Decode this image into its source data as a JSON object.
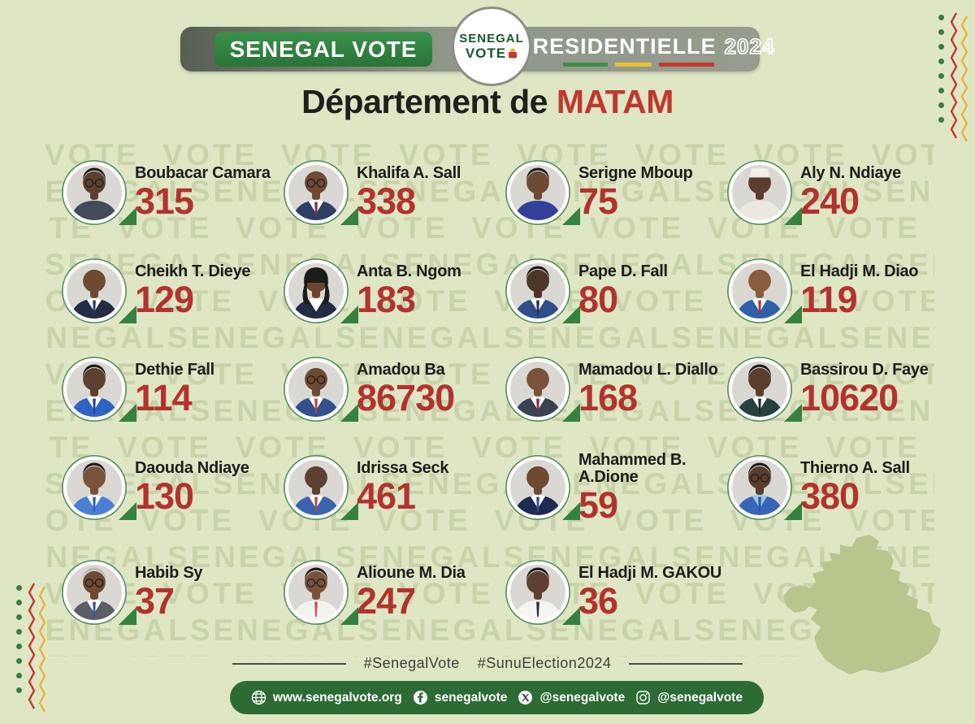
{
  "header": {
    "badge_label": "SENEGAL VOTE",
    "logo_line1": "SENEGAL",
    "logo_line2": "VOTE",
    "banner_title": "PRESIDENTIELLE",
    "banner_year": "2024"
  },
  "title": {
    "prefix": "Département de ",
    "highlight": "MATAM"
  },
  "results": [
    {
      "name": "Boubacar Camara",
      "votes": "315",
      "avatar": {
        "skin": "#5d4030",
        "suit": "#434a58",
        "shirt": null,
        "tie": null,
        "hair": "short",
        "glasses": true,
        "hat": null
      }
    },
    {
      "name": "Khalifa A. Sall",
      "votes": "338",
      "avatar": {
        "skin": "#6e4a33",
        "suit": "#2e3f66",
        "shirt": "#ffffff",
        "tie": "#7a3545",
        "hair": "bald",
        "glasses": true,
        "hat": null
      }
    },
    {
      "name": "Serigne Mboup",
      "votes": "75",
      "avatar": {
        "skin": "#6e4a33",
        "suit": "#32409b",
        "shirt": null,
        "tie": null,
        "hair": "short",
        "glasses": false,
        "hat": null
      }
    },
    {
      "name": "Aly N. Ndiaye",
      "votes": "240",
      "avatar": {
        "skin": "#5a3d2c",
        "suit": "#eceadf",
        "shirt": null,
        "tie": null,
        "hair": "bald",
        "glasses": false,
        "hat": "#f2f0e6"
      }
    },
    {
      "name": "Cheikh T. Dieye",
      "votes": "129",
      "avatar": {
        "skin": "#6e4a33",
        "suit": "#232e45",
        "shirt": "#ffffff",
        "tie": "#2c3c5e",
        "hair": "bald",
        "glasses": false,
        "hat": null
      }
    },
    {
      "name": "Anta B. Ngom",
      "votes": "183",
      "avatar": {
        "skin": "#6d452f",
        "suit": "#222c42",
        "shirt": "#ffffff",
        "tie": null,
        "hair": "long",
        "glasses": false,
        "hat": null
      }
    },
    {
      "name": "Pape D. Fall",
      "votes": "80",
      "avatar": {
        "skin": "#4f3526",
        "suit": "#2f4f8c",
        "shirt": "#ffffff",
        "tie": "#26304d",
        "hair": "short",
        "glasses": false,
        "hat": null
      }
    },
    {
      "name": "El Hadji M. Diao",
      "votes": "119",
      "avatar": {
        "skin": "#8a5c3e",
        "suit": "#2f5fa8",
        "shirt": "#ffffff",
        "tie": "#b03040",
        "hair": "bald",
        "glasses": false,
        "hat": null
      }
    },
    {
      "name": "Dethie Fall",
      "votes": "114",
      "avatar": {
        "skin": "#5d4030",
        "suit": "#2f62c4",
        "shirt": "#ffffff",
        "tie": "#2a3f8f",
        "hair": "short",
        "glasses": false,
        "hat": null
      }
    },
    {
      "name": "Amadou Ba",
      "votes": "86730",
      "avatar": {
        "skin": "#6e4a33",
        "suit": "#33508f",
        "shirt": "#ffffff",
        "tie": "#b5453e",
        "hair": "bald",
        "glasses": true,
        "hat": null
      }
    },
    {
      "name": "Mamadou L. Diallo",
      "votes": "168",
      "avatar": {
        "skin": "#7a523a",
        "suit": "#3a4352",
        "shirt": "#ffffff",
        "tie": "#7e2f42",
        "hair": "bald",
        "glasses": false,
        "hat": null
      }
    },
    {
      "name": "Bassirou D. Faye",
      "votes": "10620",
      "avatar": {
        "skin": "#5a3d2c",
        "suit": "#27413f",
        "shirt": "#ffffff",
        "tie": "#1d2b33",
        "hair": "short",
        "glasses": false,
        "hat": null
      }
    },
    {
      "name": "Daouda Ndiaye",
      "votes": "130",
      "avatar": {
        "skin": "#7a523a",
        "suit": "#4b7fd6",
        "shirt": "#ffffff",
        "tie": "#2f5fae",
        "hair": "short",
        "glasses": false,
        "hat": null
      }
    },
    {
      "name": "Idrissa Seck",
      "votes": "461",
      "avatar": {
        "skin": "#5d4030",
        "suit": "#3b63b0",
        "shirt": "#ffffff",
        "tie": "#c2463c",
        "hair": "bald",
        "glasses": false,
        "hat": null
      }
    },
    {
      "name": "Mahammed B. A.Dione",
      "votes": "59",
      "avatar": {
        "skin": "#6e4a33",
        "suit": "#1f2c52",
        "shirt": "#ffffff",
        "tie": "#2f4f9e",
        "hair": "bald",
        "glasses": false,
        "hat": null
      }
    },
    {
      "name": "Thierno A. Sall",
      "votes": "380",
      "avatar": {
        "skin": "#5a3d2c",
        "suit": "#3566b8",
        "shirt": "#9ec4e8",
        "tie": "#2b57a0",
        "hair": "short",
        "glasses": true,
        "hat": null
      }
    },
    {
      "name": "Habib Sy",
      "votes": "37",
      "avatar": {
        "skin": "#6e4a33",
        "suit": "#5a5f66",
        "shirt": "#ffffff",
        "tie": "#3a5a8e",
        "hair": "gray",
        "glasses": true,
        "hat": null
      }
    },
    {
      "name": "Alioune M. Dia",
      "votes": "247",
      "avatar": {
        "skin": "#7a523a",
        "suit": "#f2f2ee",
        "shirt": null,
        "tie": "#c05560",
        "hair": "short",
        "glasses": true,
        "hat": null
      }
    },
    {
      "name": "El Hadji M. GAKOU",
      "votes": "36",
      "avatar": {
        "skin": "#5d4030",
        "suit": "#f5f5f1",
        "shirt": null,
        "tie": "#2a3440",
        "hair": "short",
        "glasses": false,
        "hat": null
      }
    }
  ],
  "hashtags": [
    "#SenegalVote",
    "#SunuElection2024"
  ],
  "footer": {
    "items": [
      {
        "icon": "globe-icon",
        "label": "www.senegalvote.org"
      },
      {
        "icon": "facebook-icon",
        "label": "senegalvote"
      },
      {
        "icon": "x-icon",
        "label": "@senegalvote"
      },
      {
        "icon": "instagram-icon",
        "label": "@senegalvote"
      }
    ]
  },
  "watermark": {
    "word1": "VOTE",
    "word2": "SENEGAL"
  },
  "colors": {
    "background": "#dee6c4",
    "accent_red": "#b2332e",
    "title_red": "#c03730",
    "badge_green": "#2e7d3c",
    "footer_green": "#2d6b35",
    "banner_gray": "#8f968a",
    "map_green": "#b8c58c",
    "flag_green": "#3f8f43",
    "flag_yellow": "#e9c42f",
    "flag_red": "#c4392c"
  },
  "chart_data": {
    "type": "table",
    "title": "Département de MATAM — Presidentielle 2024",
    "value_label": "votes",
    "categories": [
      "Boubacar Camara",
      "Khalifa A. Sall",
      "Serigne Mboup",
      "Aly N. Ndiaye",
      "Cheikh T. Dieye",
      "Anta B. Ngom",
      "Pape D. Fall",
      "El Hadji M. Diao",
      "Dethie Fall",
      "Amadou Ba",
      "Mamadou L. Diallo",
      "Bassirou D. Faye",
      "Daouda Ndiaye",
      "Idrissa Seck",
      "Mahammed B. A.Dione",
      "Thierno A. Sall",
      "Habib Sy",
      "Alioune M. Dia",
      "El Hadji M. GAKOU"
    ],
    "values": [
      315,
      338,
      75,
      240,
      129,
      183,
      80,
      119,
      114,
      86730,
      168,
      10620,
      130,
      461,
      59,
      380,
      37,
      247,
      36
    ]
  }
}
